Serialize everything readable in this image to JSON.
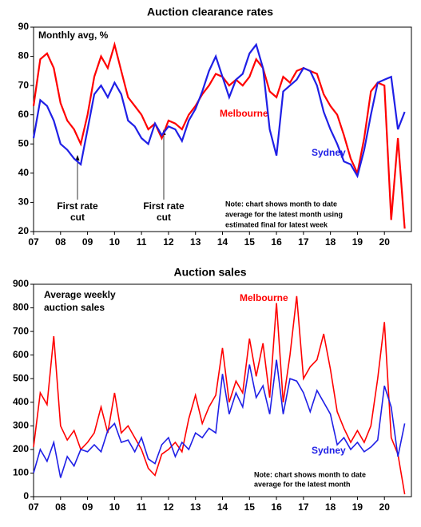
{
  "chart_data": [
    {
      "type": "line",
      "title": "Auction clearance rates",
      "subtitle": [
        "Monthly avg, %"
      ],
      "x": [
        2007,
        2007.25,
        2007.5,
        2007.75,
        2008,
        2008.25,
        2008.5,
        2008.75,
        2009,
        2009.25,
        2009.5,
        2009.75,
        2010,
        2010.25,
        2010.5,
        2010.75,
        2011,
        2011.25,
        2011.5,
        2011.75,
        2012,
        2012.25,
        2012.5,
        2012.75,
        2013,
        2013.25,
        2013.5,
        2013.75,
        2014,
        2014.25,
        2014.5,
        2014.75,
        2015,
        2015.25,
        2015.5,
        2015.75,
        2016,
        2016.25,
        2016.5,
        2016.75,
        2017,
        2017.25,
        2017.5,
        2017.75,
        2018,
        2018.25,
        2018.5,
        2018.75,
        2019,
        2019.25,
        2019.5,
        2019.75,
        2020,
        2020.25,
        2020.5,
        2020.75
      ],
      "series": [
        {
          "name": "Melbourne",
          "color": "#ff0000",
          "values": [
            63,
            79,
            81,
            76,
            64,
            58,
            55,
            50,
            60,
            73,
            80,
            76,
            84,
            75,
            66,
            63,
            60,
            55,
            57,
            52,
            58,
            57,
            55,
            60,
            63,
            67,
            70,
            74,
            73,
            70,
            72,
            70,
            73,
            79,
            76,
            68,
            66,
            73,
            71,
            75,
            76,
            75,
            74,
            67,
            63,
            60,
            53,
            45,
            40,
            52,
            68,
            71,
            70,
            24,
            52,
            21
          ]
        },
        {
          "name": "Sydney",
          "color": "#1f1fe6",
          "values": [
            52,
            65,
            63,
            58,
            50,
            48,
            45,
            43,
            55,
            67,
            70,
            66,
            71,
            67,
            58,
            56,
            52,
            50,
            57,
            53,
            56,
            55,
            51,
            58,
            62,
            68,
            75,
            80,
            73,
            66,
            72,
            74,
            81,
            84,
            76,
            55,
            46,
            68,
            70,
            72,
            76,
            75,
            70,
            61,
            55,
            50,
            44,
            43,
            39,
            48,
            60,
            71,
            72,
            73,
            55,
            61
          ]
        }
      ],
      "annotations": [
        "First rate",
        "cut",
        "First rate",
        "cut",
        "Note: chart shows month to date",
        "average for the latest month using",
        "estimated final for latest week"
      ],
      "xlim": [
        2007,
        2021
      ],
      "xticks": [
        {
          "value": 2007,
          "label": "07"
        },
        {
          "value": 2008,
          "label": "08"
        },
        {
          "value": 2009,
          "label": "09"
        },
        {
          "value": 2010,
          "label": "10"
        },
        {
          "value": 2011,
          "label": "11"
        },
        {
          "value": 2012,
          "label": "12"
        },
        {
          "value": 2013,
          "label": "13"
        },
        {
          "value": 2014,
          "label": "14"
        },
        {
          "value": 2015,
          "label": "15"
        },
        {
          "value": 2016,
          "label": "16"
        },
        {
          "value": 2017,
          "label": "17"
        },
        {
          "value": 2018,
          "label": "18"
        },
        {
          "value": 2019,
          "label": "19"
        },
        {
          "value": 2020,
          "label": "20"
        }
      ],
      "ylim": [
        20,
        90
      ],
      "yticks": [
        20,
        30,
        40,
        50,
        60,
        70,
        80,
        90
      ]
    },
    {
      "type": "line",
      "title": "Auction sales",
      "subtitle": [
        "Average weekly",
        "auction sales"
      ],
      "x": [
        2007,
        2007.25,
        2007.5,
        2007.75,
        2008,
        2008.25,
        2008.5,
        2008.75,
        2009,
        2009.25,
        2009.5,
        2009.75,
        2010,
        2010.25,
        2010.5,
        2010.75,
        2011,
        2011.25,
        2011.5,
        2011.75,
        2012,
        2012.25,
        2012.5,
        2012.75,
        2013,
        2013.25,
        2013.5,
        2013.75,
        2014,
        2014.25,
        2014.5,
        2014.75,
        2015,
        2015.25,
        2015.5,
        2015.75,
        2016,
        2016.25,
        2016.5,
        2016.75,
        2017,
        2017.25,
        2017.5,
        2017.75,
        2018,
        2018.25,
        2018.5,
        2018.75,
        2019,
        2019.25,
        2019.5,
        2019.75,
        2020,
        2020.25,
        2020.5,
        2020.75
      ],
      "series": [
        {
          "name": "Melbourne",
          "color": "#ff0000",
          "values": [
            210,
            440,
            390,
            680,
            300,
            240,
            280,
            200,
            230,
            270,
            380,
            270,
            440,
            270,
            300,
            250,
            200,
            120,
            90,
            180,
            200,
            230,
            190,
            330,
            430,
            310,
            380,
            430,
            630,
            400,
            490,
            440,
            670,
            510,
            650,
            420,
            820,
            400,
            600,
            850,
            500,
            550,
            580,
            690,
            540,
            360,
            290,
            230,
            280,
            230,
            300,
            500,
            740,
            250,
            180,
            10
          ]
        },
        {
          "name": "Sydney",
          "color": "#1f1fe6",
          "values": [
            100,
            200,
            150,
            230,
            80,
            170,
            130,
            200,
            190,
            220,
            190,
            280,
            310,
            230,
            240,
            190,
            250,
            160,
            140,
            220,
            250,
            170,
            230,
            200,
            270,
            250,
            290,
            270,
            520,
            350,
            440,
            380,
            560,
            420,
            470,
            350,
            580,
            350,
            500,
            490,
            440,
            360,
            450,
            400,
            350,
            220,
            250,
            200,
            230,
            190,
            210,
            240,
            470,
            380,
            170,
            310
          ]
        }
      ],
      "annotations": [
        "Note: chart shows month to date",
        "average for the latest month"
      ],
      "xlim": [
        2007,
        2021
      ],
      "xticks": [
        {
          "value": 2007,
          "label": "07"
        },
        {
          "value": 2008,
          "label": "08"
        },
        {
          "value": 2009,
          "label": "09"
        },
        {
          "value": 2010,
          "label": "10"
        },
        {
          "value": 2011,
          "label": "11"
        },
        {
          "value": 2012,
          "label": "12"
        },
        {
          "value": 2013,
          "label": "13"
        },
        {
          "value": 2014,
          "label": "14"
        },
        {
          "value": 2015,
          "label": "15"
        },
        {
          "value": 2016,
          "label": "16"
        },
        {
          "value": 2017,
          "label": "17"
        },
        {
          "value": 2018,
          "label": "18"
        },
        {
          "value": 2019,
          "label": "19"
        },
        {
          "value": 2020,
          "label": "20"
        }
      ],
      "ylim": [
        0,
        900
      ],
      "yticks": [
        0,
        100,
        200,
        300,
        400,
        500,
        600,
        700,
        800,
        900
      ]
    }
  ]
}
